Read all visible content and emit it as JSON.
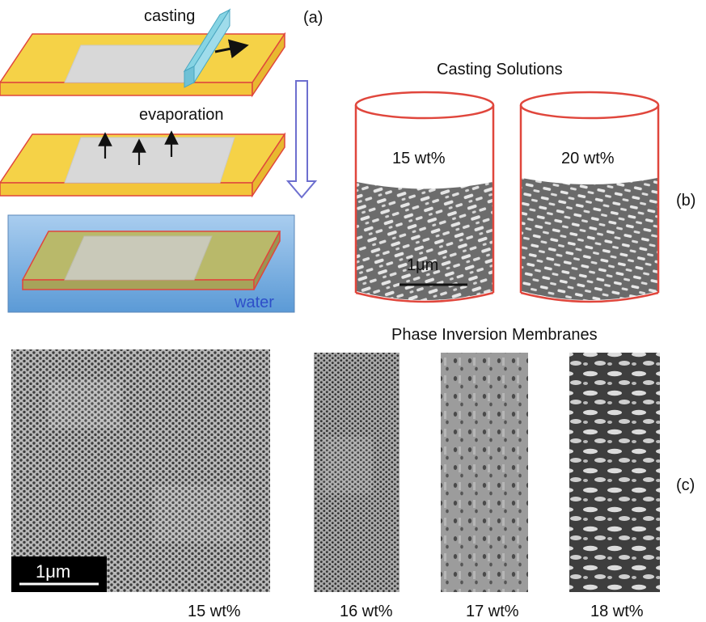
{
  "panel_a": {
    "casting": "casting",
    "evaporation": "evaporation",
    "water": "water",
    "label": "(a)"
  },
  "panel_b": {
    "title": "Casting Solutions",
    "label": "(b)",
    "cylinders": [
      {
        "text": "15 wt%"
      },
      {
        "text": "20 wt%"
      }
    ],
    "scale": "1μm"
  },
  "panel_c": {
    "title": "Phase Inversion Membranes",
    "label": "(c)",
    "scale": "1μm",
    "captions": [
      "15 wt%",
      "16 wt%",
      "17 wt%",
      "18 wt%"
    ]
  },
  "colors": {
    "substrate": "#f5d247",
    "edge": "#e0463c",
    "film": "#d8d8d8",
    "blade": "#86d4e4",
    "water": "#6aa8dc",
    "arrow": "#6d6fcf"
  }
}
